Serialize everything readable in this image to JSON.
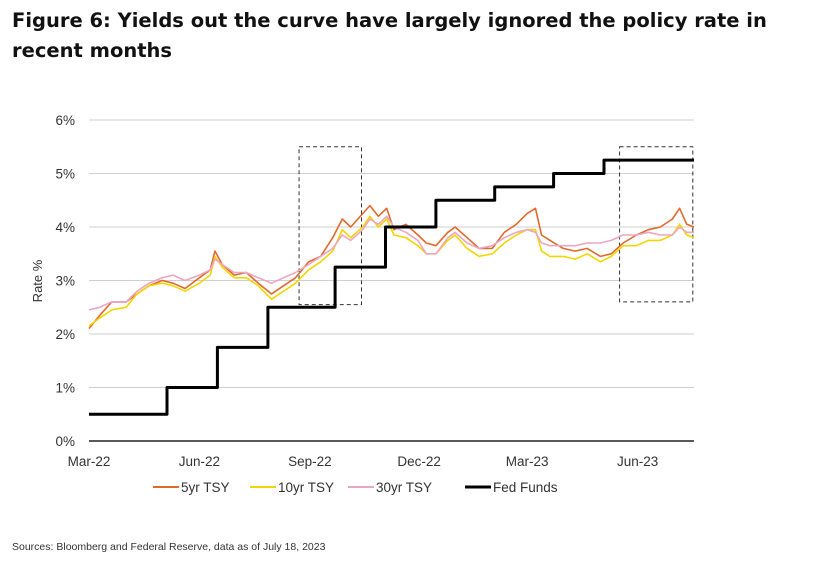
{
  "title": "Figure 6: Yields out the curve have largely ignored the policy rate in recent months",
  "source": "Sources: Bloomberg and Federal Reserve, data as of July 18, 2023",
  "chart_data": {
    "type": "line",
    "title": "Figure 6: Yields out the curve have largely ignored the policy rate in recent months",
    "xlabel": "",
    "ylabel": "Rate %",
    "x_start": "2022-03-01",
    "x_end": "2023-07-18",
    "xticks": [
      {
        "date": "2022-03-01",
        "label": "Mar-22"
      },
      {
        "date": "2022-06-01",
        "label": "Jun-22"
      },
      {
        "date": "2022-09-01",
        "label": "Sep-22"
      },
      {
        "date": "2022-12-01",
        "label": "Dec-22"
      },
      {
        "date": "2023-03-01",
        "label": "Mar-23"
      },
      {
        "date": "2023-06-01",
        "label": "Jun-23"
      }
    ],
    "ylim": [
      0,
      6
    ],
    "yticks": [
      {
        "value": 0,
        "label": "0%"
      },
      {
        "value": 1,
        "label": "1%"
      },
      {
        "value": 2,
        "label": "2%"
      },
      {
        "value": 3,
        "label": "3%"
      },
      {
        "value": 4,
        "label": "4%"
      },
      {
        "value": 5,
        "label": "5%"
      },
      {
        "value": 6,
        "label": "6%"
      }
    ],
    "grid": "horizontal",
    "legend_position": "bottom",
    "highlight_boxes": [
      {
        "x_start": "2022-08-23",
        "x_end": "2022-10-14",
        "y_start": 2.55,
        "y_end": 5.5
      },
      {
        "x_start": "2023-05-17",
        "x_end": "2023-07-17",
        "y_start": 2.6,
        "y_end": 5.5
      }
    ],
    "series": [
      {
        "name": "5yr TSY",
        "color": "#e06a2c",
        "width": 1.6,
        "points": [
          [
            "2022-03-01",
            2.1
          ],
          [
            "2022-03-10",
            2.35
          ],
          [
            "2022-03-20",
            2.6
          ],
          [
            "2022-04-01",
            2.6
          ],
          [
            "2022-04-10",
            2.75
          ],
          [
            "2022-04-20",
            2.9
          ],
          [
            "2022-05-01",
            3.0
          ],
          [
            "2022-05-10",
            2.95
          ],
          [
            "2022-05-20",
            2.85
          ],
          [
            "2022-06-01",
            3.05
          ],
          [
            "2022-06-10",
            3.2
          ],
          [
            "2022-06-14",
            3.55
          ],
          [
            "2022-06-20",
            3.3
          ],
          [
            "2022-06-30",
            3.1
          ],
          [
            "2022-07-10",
            3.15
          ],
          [
            "2022-07-20",
            2.95
          ],
          [
            "2022-07-31",
            2.75
          ],
          [
            "2022-08-10",
            2.9
          ],
          [
            "2022-08-20",
            3.05
          ],
          [
            "2022-08-31",
            3.35
          ],
          [
            "2022-09-10",
            3.45
          ],
          [
            "2022-09-20",
            3.8
          ],
          [
            "2022-09-28",
            4.15
          ],
          [
            "2022-10-05",
            4.0
          ],
          [
            "2022-10-15",
            4.25
          ],
          [
            "2022-10-21",
            4.4
          ],
          [
            "2022-10-28",
            4.2
          ],
          [
            "2022-11-04",
            4.35
          ],
          [
            "2022-11-10",
            3.95
          ],
          [
            "2022-11-20",
            4.05
          ],
          [
            "2022-11-30",
            3.85
          ],
          [
            "2022-12-07",
            3.7
          ],
          [
            "2022-12-15",
            3.65
          ],
          [
            "2022-12-25",
            3.9
          ],
          [
            "2022-12-31",
            4.0
          ],
          [
            "2023-01-10",
            3.8
          ],
          [
            "2023-01-20",
            3.6
          ],
          [
            "2023-01-31",
            3.6
          ],
          [
            "2023-02-10",
            3.9
          ],
          [
            "2023-02-20",
            4.05
          ],
          [
            "2023-03-01",
            4.25
          ],
          [
            "2023-03-08",
            4.35
          ],
          [
            "2023-03-13",
            3.85
          ],
          [
            "2023-03-20",
            3.75
          ],
          [
            "2023-03-31",
            3.6
          ],
          [
            "2023-04-10",
            3.55
          ],
          [
            "2023-04-20",
            3.6
          ],
          [
            "2023-05-01",
            3.45
          ],
          [
            "2023-05-10",
            3.5
          ],
          [
            "2023-05-20",
            3.7
          ],
          [
            "2023-05-31",
            3.85
          ],
          [
            "2023-06-10",
            3.95
          ],
          [
            "2023-06-20",
            4.0
          ],
          [
            "2023-06-30",
            4.15
          ],
          [
            "2023-07-06",
            4.35
          ],
          [
            "2023-07-12",
            4.05
          ],
          [
            "2023-07-18",
            4.0
          ]
        ]
      },
      {
        "name": "10yr TSY",
        "color": "#f2d600",
        "width": 1.6,
        "points": [
          [
            "2022-03-01",
            2.15
          ],
          [
            "2022-03-10",
            2.3
          ],
          [
            "2022-03-20",
            2.45
          ],
          [
            "2022-04-01",
            2.5
          ],
          [
            "2022-04-10",
            2.75
          ],
          [
            "2022-04-20",
            2.9
          ],
          [
            "2022-05-01",
            2.95
          ],
          [
            "2022-05-10",
            2.9
          ],
          [
            "2022-05-20",
            2.8
          ],
          [
            "2022-06-01",
            2.95
          ],
          [
            "2022-06-10",
            3.1
          ],
          [
            "2022-06-14",
            3.45
          ],
          [
            "2022-06-20",
            3.25
          ],
          [
            "2022-06-30",
            3.05
          ],
          [
            "2022-07-10",
            3.05
          ],
          [
            "2022-07-20",
            2.9
          ],
          [
            "2022-07-31",
            2.65
          ],
          [
            "2022-08-10",
            2.8
          ],
          [
            "2022-08-20",
            2.95
          ],
          [
            "2022-08-31",
            3.2
          ],
          [
            "2022-09-10",
            3.35
          ],
          [
            "2022-09-20",
            3.55
          ],
          [
            "2022-09-28",
            3.95
          ],
          [
            "2022-10-05",
            3.8
          ],
          [
            "2022-10-15",
            4.0
          ],
          [
            "2022-10-21",
            4.2
          ],
          [
            "2022-10-28",
            4.0
          ],
          [
            "2022-11-04",
            4.15
          ],
          [
            "2022-11-10",
            3.85
          ],
          [
            "2022-11-20",
            3.8
          ],
          [
            "2022-11-30",
            3.65
          ],
          [
            "2022-12-07",
            3.5
          ],
          [
            "2022-12-15",
            3.5
          ],
          [
            "2022-12-25",
            3.75
          ],
          [
            "2022-12-31",
            3.85
          ],
          [
            "2023-01-10",
            3.6
          ],
          [
            "2023-01-20",
            3.45
          ],
          [
            "2023-01-31",
            3.5
          ],
          [
            "2023-02-10",
            3.7
          ],
          [
            "2023-02-20",
            3.85
          ],
          [
            "2023-03-01",
            3.95
          ],
          [
            "2023-03-08",
            3.95
          ],
          [
            "2023-03-13",
            3.55
          ],
          [
            "2023-03-20",
            3.45
          ],
          [
            "2023-03-31",
            3.45
          ],
          [
            "2023-04-10",
            3.4
          ],
          [
            "2023-04-20",
            3.5
          ],
          [
            "2023-05-01",
            3.35
          ],
          [
            "2023-05-10",
            3.45
          ],
          [
            "2023-05-20",
            3.65
          ],
          [
            "2023-05-31",
            3.65
          ],
          [
            "2023-06-10",
            3.75
          ],
          [
            "2023-06-20",
            3.75
          ],
          [
            "2023-06-30",
            3.85
          ],
          [
            "2023-07-06",
            4.05
          ],
          [
            "2023-07-12",
            3.85
          ],
          [
            "2023-07-18",
            3.8
          ]
        ]
      },
      {
        "name": "30yr TSY",
        "color": "#e9a7c4",
        "width": 1.6,
        "points": [
          [
            "2022-03-01",
            2.45
          ],
          [
            "2022-03-10",
            2.5
          ],
          [
            "2022-03-20",
            2.6
          ],
          [
            "2022-04-01",
            2.6
          ],
          [
            "2022-04-10",
            2.8
          ],
          [
            "2022-04-20",
            2.95
          ],
          [
            "2022-05-01",
            3.05
          ],
          [
            "2022-05-10",
            3.1
          ],
          [
            "2022-05-20",
            3.0
          ],
          [
            "2022-06-01",
            3.1
          ],
          [
            "2022-06-10",
            3.2
          ],
          [
            "2022-06-14",
            3.4
          ],
          [
            "2022-06-20",
            3.3
          ],
          [
            "2022-06-30",
            3.15
          ],
          [
            "2022-07-10",
            3.15
          ],
          [
            "2022-07-20",
            3.05
          ],
          [
            "2022-07-31",
            2.95
          ],
          [
            "2022-08-10",
            3.05
          ],
          [
            "2022-08-20",
            3.15
          ],
          [
            "2022-08-31",
            3.3
          ],
          [
            "2022-09-10",
            3.45
          ],
          [
            "2022-09-20",
            3.6
          ],
          [
            "2022-09-28",
            3.85
          ],
          [
            "2022-10-05",
            3.75
          ],
          [
            "2022-10-15",
            3.95
          ],
          [
            "2022-10-21",
            4.15
          ],
          [
            "2022-10-28",
            4.05
          ],
          [
            "2022-11-04",
            4.2
          ],
          [
            "2022-11-10",
            4.0
          ],
          [
            "2022-11-20",
            3.9
          ],
          [
            "2022-11-30",
            3.75
          ],
          [
            "2022-12-07",
            3.5
          ],
          [
            "2022-12-15",
            3.5
          ],
          [
            "2022-12-25",
            3.8
          ],
          [
            "2022-12-31",
            3.9
          ],
          [
            "2023-01-10",
            3.7
          ],
          [
            "2023-01-20",
            3.6
          ],
          [
            "2023-01-31",
            3.65
          ],
          [
            "2023-02-10",
            3.8
          ],
          [
            "2023-02-20",
            3.9
          ],
          [
            "2023-03-01",
            3.95
          ],
          [
            "2023-03-08",
            3.9
          ],
          [
            "2023-03-13",
            3.7
          ],
          [
            "2023-03-20",
            3.65
          ],
          [
            "2023-03-31",
            3.65
          ],
          [
            "2023-04-10",
            3.65
          ],
          [
            "2023-04-20",
            3.7
          ],
          [
            "2023-05-01",
            3.7
          ],
          [
            "2023-05-10",
            3.75
          ],
          [
            "2023-05-20",
            3.85
          ],
          [
            "2023-05-31",
            3.85
          ],
          [
            "2023-06-10",
            3.9
          ],
          [
            "2023-06-20",
            3.85
          ],
          [
            "2023-06-30",
            3.85
          ],
          [
            "2023-07-06",
            4.0
          ],
          [
            "2023-07-12",
            3.9
          ],
          [
            "2023-07-18",
            3.9
          ]
        ]
      },
      {
        "name": "Fed Funds",
        "color": "#000000",
        "width": 3,
        "step": true,
        "points": [
          [
            "2022-03-01",
            0.5
          ],
          [
            "2022-05-05",
            1.0
          ],
          [
            "2022-06-16",
            1.75
          ],
          [
            "2022-07-28",
            2.5
          ],
          [
            "2022-09-22",
            3.25
          ],
          [
            "2022-11-03",
            4.0
          ],
          [
            "2022-12-15",
            4.5
          ],
          [
            "2023-02-02",
            4.75
          ],
          [
            "2023-03-23",
            5.0
          ],
          [
            "2023-05-04",
            5.25
          ],
          [
            "2023-07-18",
            5.25
          ]
        ]
      }
    ]
  }
}
